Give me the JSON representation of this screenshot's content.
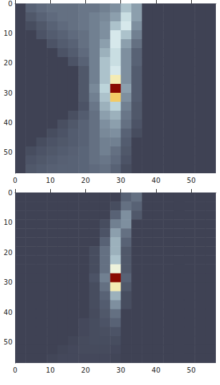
{
  "chart_data": [
    {
      "type": "heatmap",
      "x": [
        1.5,
        4.5,
        7.5,
        10.5,
        13.5,
        16.5,
        19.5,
        22.5,
        25.5,
        28.5,
        31.5,
        34.5,
        37.5,
        40.5,
        43.5,
        46.5,
        49.5,
        52.5,
        55.5
      ],
      "y": [
        1.5,
        4.5,
        7.5,
        10.5,
        13.5,
        16.5,
        19.5,
        22.5,
        25.5,
        28.5,
        31.5,
        34.5,
        37.5,
        40.5,
        43.5,
        46.5,
        49.5,
        52.5,
        55.5
      ],
      "cells": [
        [
          0,
          0.15,
          0.18,
          0.2,
          0.2,
          0.2,
          0.22,
          0.22,
          0.25,
          0.3,
          0.45,
          0.35,
          0,
          0,
          0,
          0,
          0,
          0,
          0
        ],
        [
          0,
          0.1,
          0.15,
          0.18,
          0.2,
          0.2,
          0.22,
          0.25,
          0.28,
          0.35,
          0.55,
          0.35,
          0,
          0,
          0,
          0,
          0,
          0,
          0
        ],
        [
          0,
          0.05,
          0.1,
          0.15,
          0.18,
          0.2,
          0.22,
          0.25,
          0.3,
          0.45,
          0.6,
          0.3,
          0,
          0,
          0,
          0,
          0,
          0,
          0
        ],
        [
          0,
          0,
          0.08,
          0.12,
          0.15,
          0.18,
          0.2,
          0.25,
          0.3,
          0.6,
          0.45,
          0.25,
          0,
          0,
          0,
          0,
          0,
          0,
          0
        ],
        [
          0,
          0,
          0,
          0.08,
          0.12,
          0.15,
          0.2,
          0.25,
          0.35,
          0.6,
          0.35,
          0.2,
          0,
          0,
          0,
          0,
          0,
          0,
          0
        ],
        [
          0,
          0,
          0,
          0,
          0.08,
          0.12,
          0.18,
          0.25,
          0.4,
          0.55,
          0.3,
          0.15,
          0,
          0,
          0,
          0,
          0,
          0,
          0
        ],
        [
          0,
          0,
          0,
          0,
          0,
          0.08,
          0.15,
          0.25,
          0.45,
          0.55,
          0.3,
          0.15,
          0,
          0,
          0,
          0,
          0,
          0,
          0
        ],
        [
          0,
          0,
          0,
          0,
          0,
          0,
          0.1,
          0.25,
          0.45,
          0.6,
          0.3,
          0.12,
          0,
          0,
          0,
          0,
          0,
          0,
          0
        ],
        [
          0,
          0,
          0,
          0,
          0,
          0,
          0.1,
          0.25,
          0.45,
          0.75,
          0.3,
          0.12,
          0,
          0,
          0,
          0,
          0,
          0,
          0
        ],
        [
          0,
          0,
          0,
          0,
          0,
          0,
          0.1,
          0.28,
          0.5,
          1,
          0.35,
          0.12,
          0,
          0,
          0,
          0,
          0,
          0,
          0
        ],
        [
          0,
          0,
          0,
          0,
          0,
          0,
          0.1,
          0.25,
          0.45,
          0.85,
          0.3,
          0.12,
          0,
          0,
          0,
          0,
          0,
          0,
          0
        ],
        [
          0,
          0,
          0,
          0,
          0,
          0,
          0.08,
          0.22,
          0.4,
          0.5,
          0.25,
          0.1,
          0,
          0,
          0,
          0,
          0,
          0,
          0
        ],
        [
          0,
          0,
          0,
          0,
          0,
          0.06,
          0.12,
          0.2,
          0.35,
          0.4,
          0.22,
          0.1,
          0,
          0,
          0,
          0,
          0,
          0,
          0
        ],
        [
          0,
          0,
          0,
          0,
          0.06,
          0.1,
          0.15,
          0.2,
          0.3,
          0.35,
          0.2,
          0.08,
          0,
          0,
          0,
          0,
          0,
          0,
          0
        ],
        [
          0,
          0,
          0,
          0.05,
          0.08,
          0.12,
          0.15,
          0.2,
          0.28,
          0.3,
          0.15,
          0.05,
          0,
          0,
          0,
          0,
          0,
          0,
          0
        ],
        [
          0,
          0,
          0.05,
          0.08,
          0.1,
          0.12,
          0.15,
          0.2,
          0.25,
          0.25,
          0.12,
          0,
          0,
          0,
          0,
          0,
          0,
          0,
          0
        ],
        [
          0,
          0.05,
          0.08,
          0.1,
          0.12,
          0.14,
          0.16,
          0.2,
          0.25,
          0.2,
          0.1,
          0,
          0,
          0,
          0,
          0,
          0,
          0,
          0
        ],
        [
          0,
          0.08,
          0.1,
          0.12,
          0.14,
          0.15,
          0.16,
          0.2,
          0.22,
          0.18,
          0.08,
          0,
          0,
          0,
          0,
          0,
          0,
          0,
          0
        ],
        [
          0,
          0.1,
          0.12,
          0.14,
          0.15,
          0.15,
          0.16,
          0.18,
          0.2,
          0.15,
          0.05,
          0,
          0,
          0,
          0,
          0,
          0,
          0,
          0
        ]
      ],
      "clim": [
        0,
        1
      ],
      "xlim": [
        0,
        57
      ],
      "xticks": [
        0,
        10,
        20,
        30,
        40,
        50
      ],
      "ylim": [
        0,
        57
      ],
      "yticks": [
        0,
        10,
        20,
        30,
        40,
        50
      ]
    },
    {
      "type": "heatmap",
      "x": [
        1.5,
        4.5,
        7.5,
        10.5,
        13.5,
        16.5,
        19.5,
        22.5,
        25.5,
        28.5,
        31.5,
        34.5,
        37.5,
        40.5,
        43.5,
        46.5,
        49.5,
        52.5,
        55.5
      ],
      "y": [
        1.5,
        4.5,
        7.5,
        10.5,
        13.5,
        16.5,
        19.5,
        22.5,
        25.5,
        28.5,
        31.5,
        34.5,
        37.5,
        40.5,
        43.5,
        46.5,
        49.5,
        52.5,
        55.5
      ],
      "cells": [
        [
          0,
          0,
          0,
          0,
          0,
          0,
          0,
          0,
          0,
          0,
          0.15,
          0.2,
          0,
          0,
          0,
          0,
          0,
          0,
          0
        ],
        [
          0,
          0,
          0,
          0,
          0,
          0,
          0,
          0,
          0,
          0.05,
          0.2,
          0.15,
          0,
          0,
          0,
          0,
          0,
          0,
          0
        ],
        [
          0,
          0,
          0,
          0,
          0,
          0,
          0,
          0,
          0,
          0.15,
          0.3,
          0.1,
          0,
          0,
          0,
          0,
          0,
          0,
          0
        ],
        [
          0,
          0,
          0,
          0,
          0,
          0,
          0,
          0,
          0.05,
          0.25,
          0.3,
          0,
          0,
          0,
          0,
          0,
          0,
          0,
          0
        ],
        [
          0,
          0,
          0,
          0,
          0,
          0,
          0,
          0,
          0.08,
          0.35,
          0.2,
          0,
          0,
          0,
          0,
          0,
          0,
          0,
          0
        ],
        [
          0,
          0,
          0,
          0,
          0,
          0,
          0,
          0,
          0.15,
          0.4,
          0.15,
          0,
          0,
          0,
          0,
          0,
          0,
          0,
          0
        ],
        [
          0,
          0,
          0,
          0,
          0,
          0,
          0,
          0.05,
          0.2,
          0.4,
          0.1,
          0,
          0,
          0,
          0,
          0,
          0,
          0,
          0
        ],
        [
          0,
          0,
          0,
          0,
          0,
          0,
          0,
          0.05,
          0.2,
          0.45,
          0.1,
          0,
          0,
          0,
          0,
          0,
          0,
          0,
          0
        ],
        [
          0,
          0,
          0,
          0,
          0,
          0,
          0,
          0.05,
          0.2,
          0.7,
          0.1,
          0,
          0,
          0,
          0,
          0,
          0,
          0,
          0
        ],
        [
          0,
          0,
          0,
          0,
          0,
          0,
          0,
          0.08,
          0.25,
          1,
          0.15,
          0,
          0,
          0,
          0,
          0,
          0,
          0,
          0
        ],
        [
          0,
          0,
          0,
          0,
          0,
          0,
          0,
          0.05,
          0.2,
          0.75,
          0.1,
          0,
          0,
          0,
          0,
          0,
          0,
          0,
          0
        ],
        [
          0,
          0,
          0,
          0,
          0,
          0,
          0,
          0.05,
          0.15,
          0.4,
          0.05,
          0,
          0,
          0,
          0,
          0,
          0,
          0,
          0
        ],
        [
          0,
          0,
          0,
          0,
          0,
          0,
          0,
          0.05,
          0.12,
          0.3,
          0.05,
          0,
          0,
          0,
          0,
          0,
          0,
          0,
          0
        ],
        [
          0,
          0,
          0,
          0,
          0,
          0,
          0,
          0.04,
          0.1,
          0.2,
          0,
          0,
          0,
          0,
          0,
          0,
          0,
          0,
          0
        ],
        [
          0,
          0,
          0,
          0,
          0,
          0,
          0.03,
          0.05,
          0.08,
          0.15,
          0,
          0,
          0,
          0,
          0,
          0,
          0,
          0,
          0
        ],
        [
          0,
          0,
          0,
          0,
          0,
          0,
          0.03,
          0.05,
          0.06,
          0.08,
          0,
          0,
          0,
          0,
          0,
          0,
          0,
          0,
          0
        ],
        [
          0,
          0,
          0,
          0,
          0,
          0.02,
          0.04,
          0.05,
          0.05,
          0.05,
          0,
          0,
          0,
          0,
          0,
          0,
          0,
          0,
          0
        ],
        [
          0,
          0,
          0,
          0,
          0.02,
          0.03,
          0.04,
          0.04,
          0.04,
          0.03,
          0,
          0,
          0,
          0,
          0,
          0,
          0,
          0,
          0
        ],
        [
          0,
          0,
          0,
          0.02,
          0.03,
          0.03,
          0.03,
          0.03,
          0.03,
          0.02,
          0,
          0,
          0,
          0,
          0,
          0,
          0,
          0,
          0
        ]
      ],
      "clim": [
        0,
        1
      ],
      "xlim": [
        0,
        57
      ],
      "xticks": [
        0,
        10,
        20,
        30,
        40,
        50
      ],
      "ylim": [
        0,
        57
      ],
      "yticks": [
        0,
        10,
        20,
        30,
        40,
        50
      ]
    }
  ]
}
